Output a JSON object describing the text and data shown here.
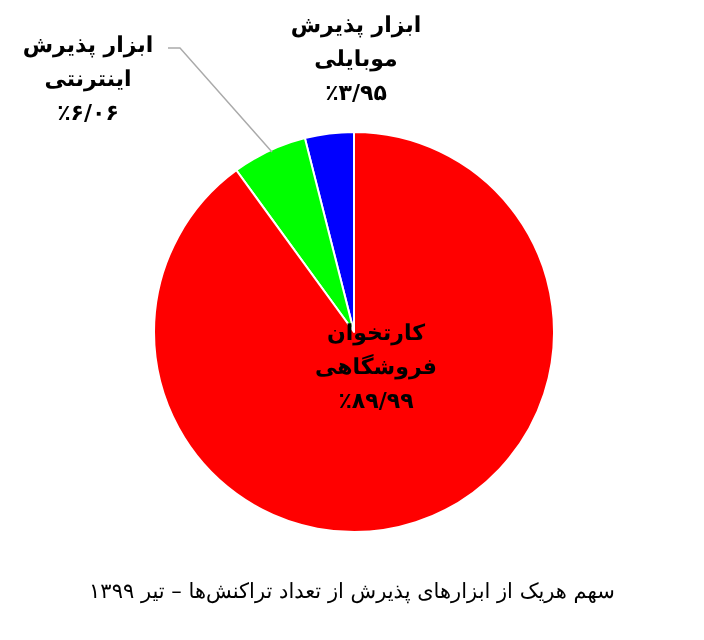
{
  "chart_data": {
    "type": "pie",
    "title": "سهم هریک از ابزارهای پذیرش از تعداد تراکنش‌ها – تیر ۱۳۹۹",
    "categories": [
      "ابزار پذیرش موبایلی",
      "ابزار پذیرش اینترنتی",
      "کارتخوان فروشگاهی"
    ],
    "values": [
      3.95,
      6.06,
      89.99
    ],
    "value_labels": [
      "٪۳/۹۵",
      "٪۶/۰۶",
      "٪۸۹/۹۹"
    ],
    "colors": [
      "#0000ff",
      "#00ff00",
      "#ff0000"
    ]
  }
}
